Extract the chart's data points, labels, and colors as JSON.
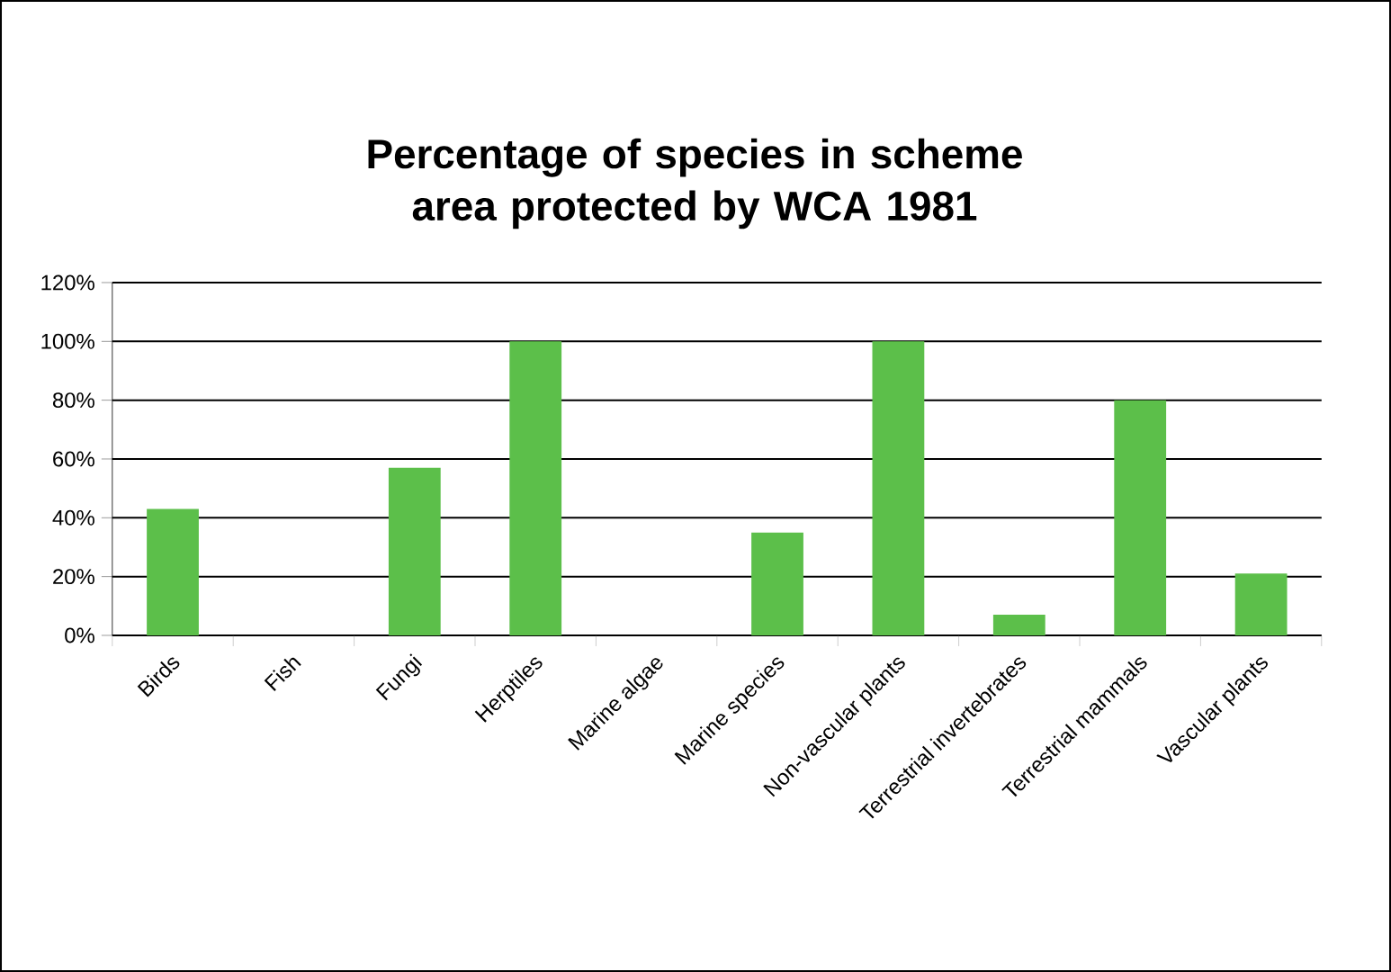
{
  "chart_data": {
    "type": "bar",
    "title": "Percentage of species in scheme area protected by WCA 1981",
    "categories": [
      "Birds",
      "Fish",
      "Fungi",
      "Herptiles",
      "Marine algae",
      "Marine species",
      "Non-vascular plants",
      "Terrestrial invertebrates",
      "Terrestrial mammals",
      "Vascular plants"
    ],
    "values": [
      43,
      0,
      57,
      100,
      0,
      35,
      100,
      7,
      80,
      21
    ],
    "color": "#5cbf4a",
    "ylim": [
      0,
      120
    ],
    "yticks": [
      {
        "value": 0,
        "label": "0%"
      },
      {
        "value": 20,
        "label": "20%"
      },
      {
        "value": 40,
        "label": "40%"
      },
      {
        "value": 60,
        "label": "60%"
      },
      {
        "value": 80,
        "label": "80%"
      },
      {
        "value": 100,
        "label": "100%"
      },
      {
        "value": 120,
        "label": "120%"
      }
    ],
    "grid": "y"
  }
}
